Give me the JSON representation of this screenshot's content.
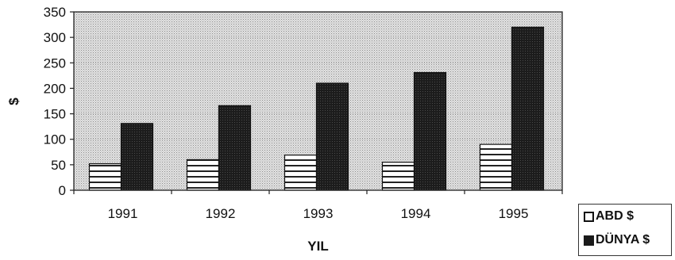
{
  "chart_data": {
    "type": "bar",
    "categories": [
      "1991",
      "1992",
      "1993",
      "1994",
      "1995"
    ],
    "series": [
      {
        "name": "ABD $",
        "values": [
          52,
          60,
          69,
          55,
          90
        ],
        "color": "#ffffff",
        "pattern": "horizontal-stripes"
      },
      {
        "name": "DÜNYA $",
        "values": [
          131,
          166,
          210,
          231,
          320
        ],
        "color": "#1e1e1e",
        "pattern": "solid-dark"
      }
    ],
    "ylabel": "$",
    "xlabel": "YIL",
    "ylim": [
      0,
      350
    ],
    "yticks": [
      0,
      50,
      100,
      150,
      200,
      250,
      300,
      350
    ],
    "plot_background": "#c8c8c8",
    "legend": "bottom-right"
  }
}
